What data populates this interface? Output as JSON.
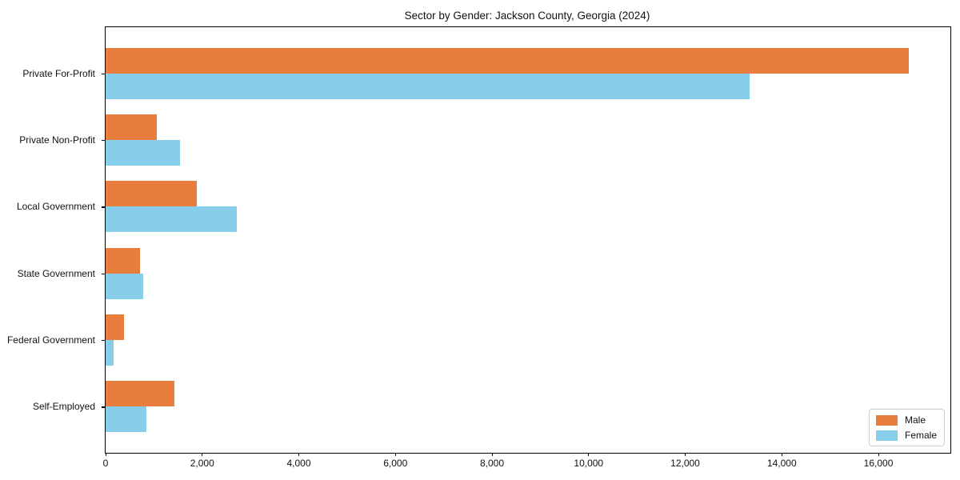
{
  "chart_data": {
    "type": "bar",
    "orientation": "horizontal",
    "title": "Sector by Gender: Jackson County, Georgia (2024)",
    "categories": [
      "Private For-Profit",
      "Private Non-Profit",
      "Local Government",
      "State Government",
      "Federal Government",
      "Self-Employed"
    ],
    "series": [
      {
        "name": "Male",
        "color": "#e87d3e",
        "values": [
          16630,
          1060,
          1890,
          710,
          380,
          1420
        ]
      },
      {
        "name": "Female",
        "color": "#87ceeb",
        "values": [
          13330,
          1540,
          2720,
          780,
          170,
          850
        ]
      }
    ],
    "xlabel": "",
    "ylabel": "",
    "xlim": [
      0,
      17490
    ],
    "xticks": {
      "values": [
        0,
        2000,
        4000,
        6000,
        8000,
        10000,
        12000,
        14000,
        16000
      ],
      "labels": [
        "0",
        "2,000",
        "4,000",
        "6,000",
        "8,000",
        "10,000",
        "12,000",
        "14,000",
        "16,000"
      ]
    },
    "grid": false,
    "legend": {
      "position": "lower right",
      "entries": [
        "Male",
        "Female"
      ]
    }
  }
}
